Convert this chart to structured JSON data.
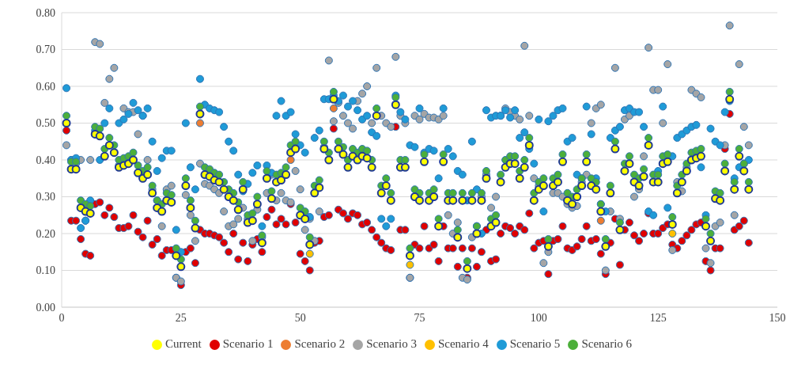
{
  "chart_data": {
    "type": "scatter",
    "x": [
      1,
      2,
      3,
      4,
      5,
      6,
      7,
      8,
      9,
      10,
      11,
      12,
      13,
      14,
      15,
      16,
      17,
      18,
      19,
      20,
      21,
      22,
      23,
      24,
      25,
      26,
      27,
      28,
      29,
      30,
      31,
      32,
      33,
      34,
      35,
      36,
      37,
      38,
      39,
      40,
      41,
      42,
      43,
      44,
      45,
      46,
      47,
      48,
      49,
      50,
      51,
      52,
      53,
      54,
      55,
      56,
      57,
      58,
      59,
      60,
      61,
      62,
      63,
      64,
      65,
      66,
      67,
      68,
      69,
      70,
      71,
      72,
      73,
      74,
      75,
      76,
      77,
      78,
      79,
      80,
      81,
      82,
      83,
      84,
      85,
      86,
      87,
      88,
      89,
      90,
      91,
      92,
      93,
      94,
      95,
      96,
      97,
      98,
      99,
      100,
      101,
      102,
      103,
      104,
      105,
      106,
      107,
      108,
      109,
      110,
      111,
      112,
      113,
      114,
      115,
      116,
      117,
      118,
      119,
      120,
      121,
      122,
      123,
      124,
      125,
      126,
      127,
      128,
      129,
      130,
      131,
      132,
      133,
      134,
      135,
      136,
      137,
      138,
      139,
      140,
      141,
      142,
      143,
      144
    ],
    "xlim": [
      0,
      150
    ],
    "xticks": [
      0,
      25,
      50,
      75,
      100,
      125,
      150
    ],
    "ylim": [
      0,
      0.8
    ],
    "yticks": [
      {
        "value": 0,
        "label": "0.00"
      },
      {
        "value": 0.1,
        "label": "0.10"
      },
      {
        "value": 0.2,
        "label": "0.20"
      },
      {
        "value": 0.3,
        "label": "0.30"
      },
      {
        "value": 0.4,
        "label": "0.40"
      },
      {
        "value": 0.5,
        "label": "0.50"
      },
      {
        "value": 0.6,
        "label": "0.60"
      },
      {
        "value": 0.7,
        "label": "0.70"
      },
      {
        "value": 0.8,
        "label": "0.80"
      }
    ],
    "grid": "y",
    "legend": "bottom",
    "marker": "circle",
    "series": [
      {
        "name": "Scenario 1",
        "color": "#e00000",
        "values": [
          0.48,
          0.235,
          0.235,
          0.185,
          0.145,
          0.14,
          0.28,
          0.285,
          0.25,
          0.27,
          0.245,
          0.215,
          0.215,
          0.22,
          0.25,
          0.205,
          0.19,
          0.235,
          0.17,
          0.185,
          0.14,
          0.155,
          0.155,
          0.08,
          0.06,
          0.15,
          0.16,
          0.12,
          0.21,
          0.2,
          0.2,
          0.195,
          0.19,
          0.175,
          0.15,
          0.2,
          0.13,
          0.175,
          0.125,
          0.17,
          0.185,
          0.15,
          0.245,
          0.265,
          0.225,
          0.24,
          0.225,
          0.28,
          0.23,
          0.145,
          0.125,
          0.1,
          0.175,
          0.18,
          0.245,
          0.25,
          0.485,
          0.265,
          0.255,
          0.24,
          0.255,
          0.25,
          0.225,
          0.23,
          0.21,
          0.19,
          0.175,
          0.16,
          0.155,
          0.49,
          0.21,
          0.21,
          0.08,
          0.17,
          0.16,
          0.22,
          0.16,
          0.17,
          0.125,
          0.22,
          0.16,
          0.16,
          0.11,
          0.16,
          0.08,
          0.16,
          0.11,
          0.15,
          0.21,
          0.125,
          0.13,
          0.2,
          0.22,
          0.215,
          0.2,
          0.22,
          0.21,
          0.255,
          0.16,
          0.175,
          0.18,
          0.09,
          0.18,
          0.185,
          0.22,
          0.16,
          0.155,
          0.165,
          0.185,
          0.22,
          0.18,
          0.185,
          0.145,
          0.09,
          0.175,
          0.24,
          0.115,
          0.21,
          0.23,
          0.195,
          0.18,
          0.2,
          0.255,
          0.2,
          0.2,
          0.215,
          0.225,
          0.17,
          0.16,
          0.18,
          0.195,
          0.21,
          0.225,
          0.23,
          0.125,
          0.1,
          0.16,
          0.16,
          0.43,
          0.525,
          0.21,
          0.22,
          0.235,
          0.175
        ]
      },
      {
        "name": "Scenario 2",
        "color": "#ed7d31",
        "values": [
          null,
          null,
          null,
          null,
          null,
          null,
          null,
          null,
          null,
          null,
          null,
          null,
          null,
          null,
          null,
          null,
          null,
          null,
          null,
          null,
          null,
          null,
          null,
          null,
          null,
          null,
          null,
          null,
          0.5,
          null,
          null,
          null,
          null,
          null,
          null,
          null,
          null,
          null,
          null,
          null,
          null,
          null,
          null,
          null,
          null,
          null,
          null,
          0.4,
          null,
          null,
          null,
          null,
          null,
          null,
          null,
          null,
          0.54,
          null,
          null,
          null,
          null,
          null,
          null,
          null,
          null,
          null,
          null,
          null,
          null,
          null,
          null,
          null,
          null,
          null,
          null,
          null,
          null,
          null,
          null,
          null,
          null,
          null,
          null,
          null,
          null,
          null,
          null,
          null,
          null,
          null,
          null,
          null,
          null,
          null,
          null,
          null,
          null,
          null,
          null,
          null,
          null,
          null,
          null,
          null,
          null,
          null,
          null,
          null,
          null,
          null,
          null,
          null,
          0.235,
          null,
          null,
          null,
          null,
          null,
          null,
          null,
          null,
          null,
          null,
          null,
          null,
          null,
          null,
          null,
          null,
          null,
          null,
          null,
          null,
          null,
          null,
          null,
          null,
          null,
          null,
          null,
          null,
          null,
          null,
          null
        ]
      },
      {
        "name": "Scenario 3",
        "color": "#a5a5a5",
        "values": [
          0.44,
          0.4,
          0.39,
          0.4,
          0.235,
          0.4,
          0.72,
          0.715,
          0.555,
          0.62,
          0.65,
          0.385,
          0.54,
          0.53,
          0.53,
          0.47,
          0.52,
          0.4,
          0.32,
          0.29,
          0.22,
          0.32,
          0.33,
          0.08,
          0.07,
          0.305,
          0.25,
          0.18,
          0.39,
          0.335,
          0.33,
          0.32,
          0.31,
          0.26,
          0.22,
          0.225,
          0.24,
          0.27,
          0.24,
          0.18,
          0.265,
          0.19,
          0.31,
          0.36,
          0.29,
          0.31,
          0.29,
          0.285,
          0.37,
          0.32,
          0.21,
          0.24,
          0.18,
          0.26,
          0.435,
          0.67,
          0.505,
          0.555,
          0.52,
          0.5,
          0.485,
          0.56,
          0.58,
          0.6,
          0.5,
          0.65,
          0.52,
          0.5,
          0.49,
          0.68,
          0.52,
          0.5,
          0.08,
          0.52,
          0.51,
          0.525,
          0.515,
          0.515,
          0.51,
          0.52,
          0.25,
          0.2,
          0.23,
          0.08,
          0.075,
          0.19,
          0.22,
          0.3,
          0.36,
          0.27,
          0.3,
          0.52,
          0.54,
          0.53,
          0.52,
          0.51,
          0.71,
          0.52,
          0.35,
          0.33,
          0.12,
          0.15,
          0.31,
          0.31,
          0.3,
          0.28,
          0.27,
          0.275,
          0.34,
          0.36,
          0.5,
          0.54,
          0.55,
          0.1,
          0.26,
          0.65,
          0.24,
          0.51,
          0.52,
          0.3,
          0.32,
          0.41,
          0.705,
          0.59,
          0.59,
          0.5,
          0.66,
          0.155,
          0.34,
          0.315,
          0.38,
          0.59,
          0.58,
          0.57,
          0.16,
          0.12,
          0.22,
          0.23,
          0.44,
          0.765,
          0.25,
          0.66,
          0.49,
          0.44
        ]
      },
      {
        "name": "Scenario 4",
        "color": "#ffc000",
        "values": [
          null,
          null,
          null,
          null,
          null,
          null,
          null,
          null,
          null,
          null,
          null,
          null,
          null,
          null,
          null,
          null,
          null,
          null,
          null,
          null,
          null,
          null,
          null,
          null,
          null,
          null,
          null,
          null,
          null,
          null,
          null,
          null,
          null,
          null,
          null,
          null,
          null,
          null,
          null,
          null,
          null,
          null,
          null,
          null,
          null,
          null,
          null,
          null,
          null,
          null,
          null,
          0.145,
          null,
          null,
          null,
          null,
          null,
          null,
          null,
          null,
          null,
          null,
          null,
          null,
          null,
          null,
          null,
          null,
          null,
          null,
          null,
          null,
          0.115,
          null,
          null,
          null,
          null,
          null,
          null,
          null,
          null,
          null,
          null,
          null,
          null,
          null,
          null,
          null,
          null,
          null,
          null,
          null,
          null,
          null,
          null,
          null,
          null,
          null,
          null,
          null,
          null,
          null,
          null,
          null,
          null,
          null,
          null,
          null,
          null,
          null,
          null,
          null,
          null,
          null,
          null,
          null,
          null,
          null,
          null,
          null,
          null,
          null,
          null,
          null,
          null,
          null,
          null,
          0.2,
          null,
          null,
          null,
          null,
          null,
          null,
          null,
          null,
          null,
          null,
          null,
          null,
          null,
          null,
          null,
          null
        ]
      },
      {
        "name": "Scenario 5",
        "color": "#1f9bd7",
        "values": [
          0.595,
          0.4,
          0.405,
          0.215,
          0.235,
          0.29,
          0.48,
          0.4,
          0.5,
          0.54,
          0.42,
          0.5,
          0.51,
          0.525,
          0.555,
          0.535,
          0.52,
          0.54,
          0.45,
          0.37,
          0.405,
          0.425,
          0.425,
          0.21,
          0.15,
          0.5,
          0.38,
          0.32,
          0.62,
          0.55,
          0.54,
          0.535,
          0.53,
          0.49,
          0.45,
          0.425,
          0.36,
          0.315,
          0.335,
          0.365,
          0.385,
          0.22,
          0.385,
          0.365,
          0.52,
          0.56,
          0.52,
          0.53,
          0.47,
          0.44,
          0.42,
          0.245,
          0.46,
          0.48,
          0.565,
          0.565,
          0.575,
          0.56,
          0.575,
          0.545,
          0.56,
          0.535,
          0.51,
          0.52,
          0.475,
          0.465,
          0.24,
          0.22,
          0.24,
          0.575,
          0.53,
          0.51,
          0.44,
          0.435,
          0.54,
          0.42,
          0.43,
          0.425,
          0.35,
          0.54,
          0.43,
          0.41,
          0.37,
          0.36,
          0.29,
          0.45,
          0.32,
          0.2,
          0.535,
          0.515,
          0.52,
          0.52,
          0.535,
          0.515,
          0.535,
          0.46,
          0.475,
          0.43,
          0.39,
          0.51,
          0.26,
          0.505,
          0.52,
          0.535,
          0.54,
          0.45,
          0.46,
          0.36,
          0.35,
          0.545,
          0.47,
          0.35,
          0.28,
          0.26,
          0.46,
          0.48,
          0.49,
          0.535,
          0.54,
          0.53,
          0.53,
          0.49,
          0.26,
          0.25,
          0.37,
          0.545,
          0.27,
          0.41,
          0.46,
          0.47,
          0.48,
          0.49,
          0.495,
          0.38,
          0.25,
          0.485,
          0.45,
          0.44,
          0.53,
          0.56,
          0.35,
          0.38,
          0.39,
          0.4
        ]
      },
      {
        "name": "Scenario 6",
        "color": "#4caf3a",
        "values": [
          0.52,
          0.395,
          0.395,
          0.29,
          0.28,
          0.275,
          0.49,
          0.485,
          0.43,
          0.46,
          0.44,
          0.4,
          0.405,
          0.41,
          0.42,
          0.385,
          0.37,
          0.38,
          0.33,
          0.29,
          0.28,
          0.31,
          0.305,
          0.16,
          0.13,
          0.35,
          0.29,
          0.235,
          0.545,
          0.38,
          0.375,
          0.365,
          0.36,
          0.34,
          0.32,
          0.31,
          0.285,
          0.34,
          0.25,
          0.255,
          0.3,
          0.195,
          0.37,
          0.315,
          0.36,
          0.365,
          0.38,
          0.44,
          0.45,
          0.27,
          0.26,
          0.19,
          0.33,
          0.345,
          0.45,
          0.42,
          0.585,
          0.45,
          0.435,
          0.4,
          0.43,
          0.42,
          0.43,
          0.425,
          0.4,
          0.54,
          0.33,
          0.35,
          0.31,
          0.57,
          0.4,
          0.4,
          0.16,
          0.32,
          0.31,
          0.415,
          0.31,
          0.32,
          0.24,
          0.415,
          0.31,
          0.31,
          0.21,
          0.31,
          0.125,
          0.31,
          0.22,
          0.31,
          0.37,
          0.24,
          0.25,
          0.36,
          0.4,
          0.41,
          0.41,
          0.37,
          0.4,
          0.46,
          0.31,
          0.34,
          0.35,
          0.185,
          0.35,
          0.36,
          0.415,
          0.31,
          0.3,
          0.32,
          0.35,
          0.415,
          0.35,
          0.34,
          0.28,
          0.185,
          0.33,
          0.45,
          0.23,
          0.39,
          0.41,
          0.36,
          0.35,
          0.375,
          0.46,
          0.36,
          0.36,
          0.41,
          0.415,
          0.245,
          0.33,
          0.36,
          0.39,
          0.42,
          0.425,
          0.43,
          0.24,
          0.2,
          0.315,
          0.31,
          0.39,
          0.585,
          0.34,
          0.43,
          0.39,
          0.34
        ]
      },
      {
        "name": "Current",
        "color": "#ffff00",
        "values": [
          0.5,
          0.375,
          0.375,
          0.27,
          0.26,
          0.255,
          0.47,
          0.465,
          0.41,
          0.44,
          0.42,
          0.38,
          0.385,
          0.39,
          0.4,
          0.365,
          0.35,
          0.36,
          0.31,
          0.27,
          0.26,
          0.29,
          0.285,
          0.14,
          0.11,
          0.33,
          0.27,
          0.215,
          0.525,
          0.36,
          0.355,
          0.345,
          0.34,
          0.32,
          0.3,
          0.29,
          0.265,
          0.32,
          0.23,
          0.235,
          0.28,
          0.175,
          0.35,
          0.295,
          0.34,
          0.345,
          0.36,
          0.42,
          0.43,
          0.25,
          0.24,
          0.17,
          0.31,
          0.325,
          0.43,
          0.4,
          0.565,
          0.43,
          0.415,
          0.38,
          0.41,
          0.4,
          0.41,
          0.405,
          0.38,
          0.52,
          0.31,
          0.33,
          0.29,
          0.55,
          0.38,
          0.38,
          0.14,
          0.3,
          0.29,
          0.395,
          0.29,
          0.3,
          0.22,
          0.395,
          0.29,
          0.29,
          0.19,
          0.29,
          0.105,
          0.29,
          0.2,
          0.29,
          0.35,
          0.22,
          0.23,
          0.34,
          0.38,
          0.39,
          0.39,
          0.35,
          0.38,
          0.44,
          0.29,
          0.32,
          0.33,
          0.165,
          0.33,
          0.34,
          0.395,
          0.29,
          0.28,
          0.3,
          0.33,
          0.395,
          0.33,
          0.32,
          0.26,
          0.165,
          0.31,
          0.43,
          0.21,
          0.37,
          0.39,
          0.34,
          0.33,
          0.355,
          0.44,
          0.34,
          0.34,
          0.39,
          0.395,
          0.225,
          0.31,
          0.34,
          0.37,
          0.4,
          0.405,
          0.41,
          0.22,
          0.18,
          0.295,
          0.29,
          0.37,
          0.565,
          0.32,
          0.41,
          0.37,
          0.32
        ]
      }
    ]
  }
}
